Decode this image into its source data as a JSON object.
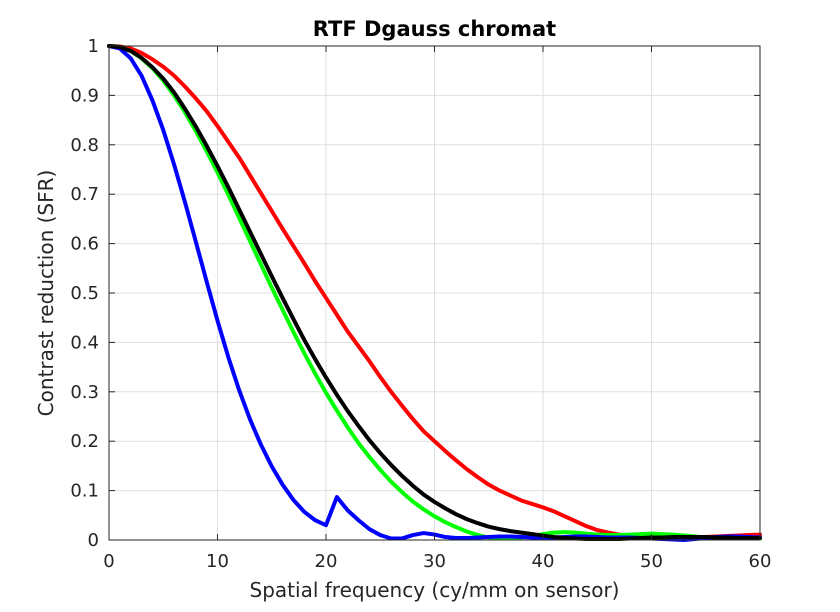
{
  "chart_data": {
    "type": "line",
    "title": "RTF Dgauss chromat",
    "xlabel": "Spatial frequency (cy/mm on sensor)",
    "ylabel": "Contrast reduction (SFR)",
    "xlim": [
      0,
      60
    ],
    "ylim": [
      0,
      1
    ],
    "xticks": [
      0,
      10,
      20,
      30,
      40,
      50,
      60
    ],
    "yticks": [
      0,
      0.1,
      0.2,
      0.3,
      0.4,
      0.5,
      0.6,
      0.7,
      0.8,
      0.9,
      1
    ],
    "ytick_labels": [
      "0",
      "0.1",
      "0.2",
      "0.3",
      "0.4",
      "0.5",
      "0.6",
      "0.7",
      "0.8",
      "0.9",
      "1"
    ],
    "grid": true,
    "legend": "none",
    "series": [
      {
        "color": "#ff0000",
        "x": [
          0,
          1,
          2,
          3,
          4,
          5,
          6,
          7,
          8,
          9,
          10,
          11,
          12,
          13,
          14,
          15,
          16,
          17,
          18,
          19,
          20,
          21,
          22,
          23,
          24,
          25,
          26,
          27,
          28,
          29,
          30,
          31,
          32,
          33,
          34,
          35,
          36,
          37,
          38,
          39,
          40,
          41,
          42,
          43,
          44,
          45,
          46,
          47,
          48,
          49,
          50,
          51,
          52,
          53,
          54,
          55,
          56,
          57,
          58,
          59,
          60
        ],
        "values": [
          1.0,
          0.999,
          0.995,
          0.986,
          0.973,
          0.958,
          0.94,
          0.918,
          0.894,
          0.868,
          0.838,
          0.806,
          0.774,
          0.738,
          0.702,
          0.666,
          0.63,
          0.595,
          0.56,
          0.524,
          0.49,
          0.456,
          0.422,
          0.392,
          0.362,
          0.33,
          0.3,
          0.272,
          0.245,
          0.22,
          0.2,
          0.18,
          0.161,
          0.143,
          0.127,
          0.112,
          0.1,
          0.09,
          0.08,
          0.073,
          0.066,
          0.058,
          0.048,
          0.038,
          0.028,
          0.02,
          0.015,
          0.011,
          0.009,
          0.008,
          0.007,
          0.006,
          0.005,
          0.005,
          0.005,
          0.006,
          0.007,
          0.008,
          0.009,
          0.01,
          0.011
        ]
      },
      {
        "color": "#00ff00",
        "x": [
          0,
          1,
          2,
          3,
          4,
          5,
          6,
          7,
          8,
          9,
          10,
          11,
          12,
          13,
          14,
          15,
          16,
          17,
          18,
          19,
          20,
          21,
          22,
          23,
          24,
          25,
          26,
          27,
          28,
          29,
          30,
          31,
          32,
          33,
          34,
          35,
          36,
          37,
          38,
          39,
          40,
          41,
          42,
          43,
          44,
          45,
          46,
          47,
          48,
          49,
          50,
          51,
          52,
          53,
          54,
          55,
          56,
          57,
          58,
          59,
          60
        ],
        "values": [
          1.0,
          0.998,
          0.99,
          0.975,
          0.955,
          0.93,
          0.9,
          0.866,
          0.828,
          0.787,
          0.744,
          0.699,
          0.652,
          0.605,
          0.558,
          0.511,
          0.466,
          0.421,
          0.378,
          0.337,
          0.298,
          0.262,
          0.228,
          0.196,
          0.168,
          0.142,
          0.118,
          0.097,
          0.078,
          0.062,
          0.048,
          0.036,
          0.026,
          0.017,
          0.01,
          0.005,
          0.003,
          0.003,
          0.005,
          0.008,
          0.012,
          0.015,
          0.016,
          0.015,
          0.013,
          0.011,
          0.01,
          0.01,
          0.011,
          0.012,
          0.013,
          0.012,
          0.011,
          0.009,
          0.007,
          0.005,
          0.004,
          0.003,
          0.003,
          0.003,
          0.003
        ]
      },
      {
        "color": "#0000ff",
        "x": [
          0,
          1,
          2,
          3,
          4,
          5,
          6,
          7,
          8,
          9,
          10,
          11,
          12,
          13,
          14,
          15,
          16,
          17,
          18,
          19,
          20,
          21,
          22,
          23,
          24,
          25,
          26,
          27,
          28,
          29,
          30,
          31,
          32,
          33,
          34,
          35,
          36,
          37,
          38,
          39,
          40,
          41,
          42,
          43,
          44,
          45,
          46,
          47,
          48,
          49,
          50,
          51,
          52,
          53,
          54,
          55,
          56,
          57,
          58,
          59,
          60
        ],
        "values": [
          1.0,
          0.995,
          0.975,
          0.94,
          0.89,
          0.83,
          0.76,
          0.684,
          0.604,
          0.523,
          0.444,
          0.37,
          0.303,
          0.244,
          0.193,
          0.149,
          0.112,
          0.081,
          0.057,
          0.04,
          0.03,
          0.087,
          0.06,
          0.04,
          0.022,
          0.01,
          0.003,
          0.003,
          0.01,
          0.014,
          0.011,
          0.006,
          0.004,
          0.004,
          0.005,
          0.006,
          0.007,
          0.007,
          0.006,
          0.005,
          0.005,
          0.005,
          0.006,
          0.007,
          0.007,
          0.006,
          0.005,
          0.005,
          0.005,
          0.004,
          0.003,
          0.002,
          0.001,
          0.0,
          0.002,
          0.004,
          0.006,
          0.007,
          0.007,
          0.006,
          0.005
        ]
      },
      {
        "color": "#000000",
        "x": [
          0,
          1,
          2,
          3,
          4,
          5,
          6,
          7,
          8,
          9,
          10,
          11,
          12,
          13,
          14,
          15,
          16,
          17,
          18,
          19,
          20,
          21,
          22,
          23,
          24,
          25,
          26,
          27,
          28,
          29,
          30,
          31,
          32,
          33,
          34,
          35,
          36,
          37,
          38,
          39,
          40,
          41,
          42,
          43,
          44,
          45,
          46,
          47,
          48,
          49,
          50,
          51,
          52,
          53,
          54,
          55,
          56,
          57,
          58,
          59,
          60
        ],
        "values": [
          1.0,
          0.998,
          0.99,
          0.976,
          0.957,
          0.934,
          0.906,
          0.873,
          0.837,
          0.798,
          0.757,
          0.714,
          0.669,
          0.624,
          0.579,
          0.534,
          0.49,
          0.447,
          0.405,
          0.366,
          0.329,
          0.294,
          0.261,
          0.231,
          0.202,
          0.176,
          0.152,
          0.13,
          0.11,
          0.092,
          0.077,
          0.064,
          0.052,
          0.042,
          0.034,
          0.027,
          0.022,
          0.018,
          0.015,
          0.012,
          0.009,
          0.006,
          0.004,
          0.003,
          0.002,
          0.002,
          0.002,
          0.002,
          0.003,
          0.004,
          0.005,
          0.005,
          0.006,
          0.006,
          0.006,
          0.006,
          0.005,
          0.005,
          0.004,
          0.004,
          0.004
        ]
      }
    ]
  }
}
